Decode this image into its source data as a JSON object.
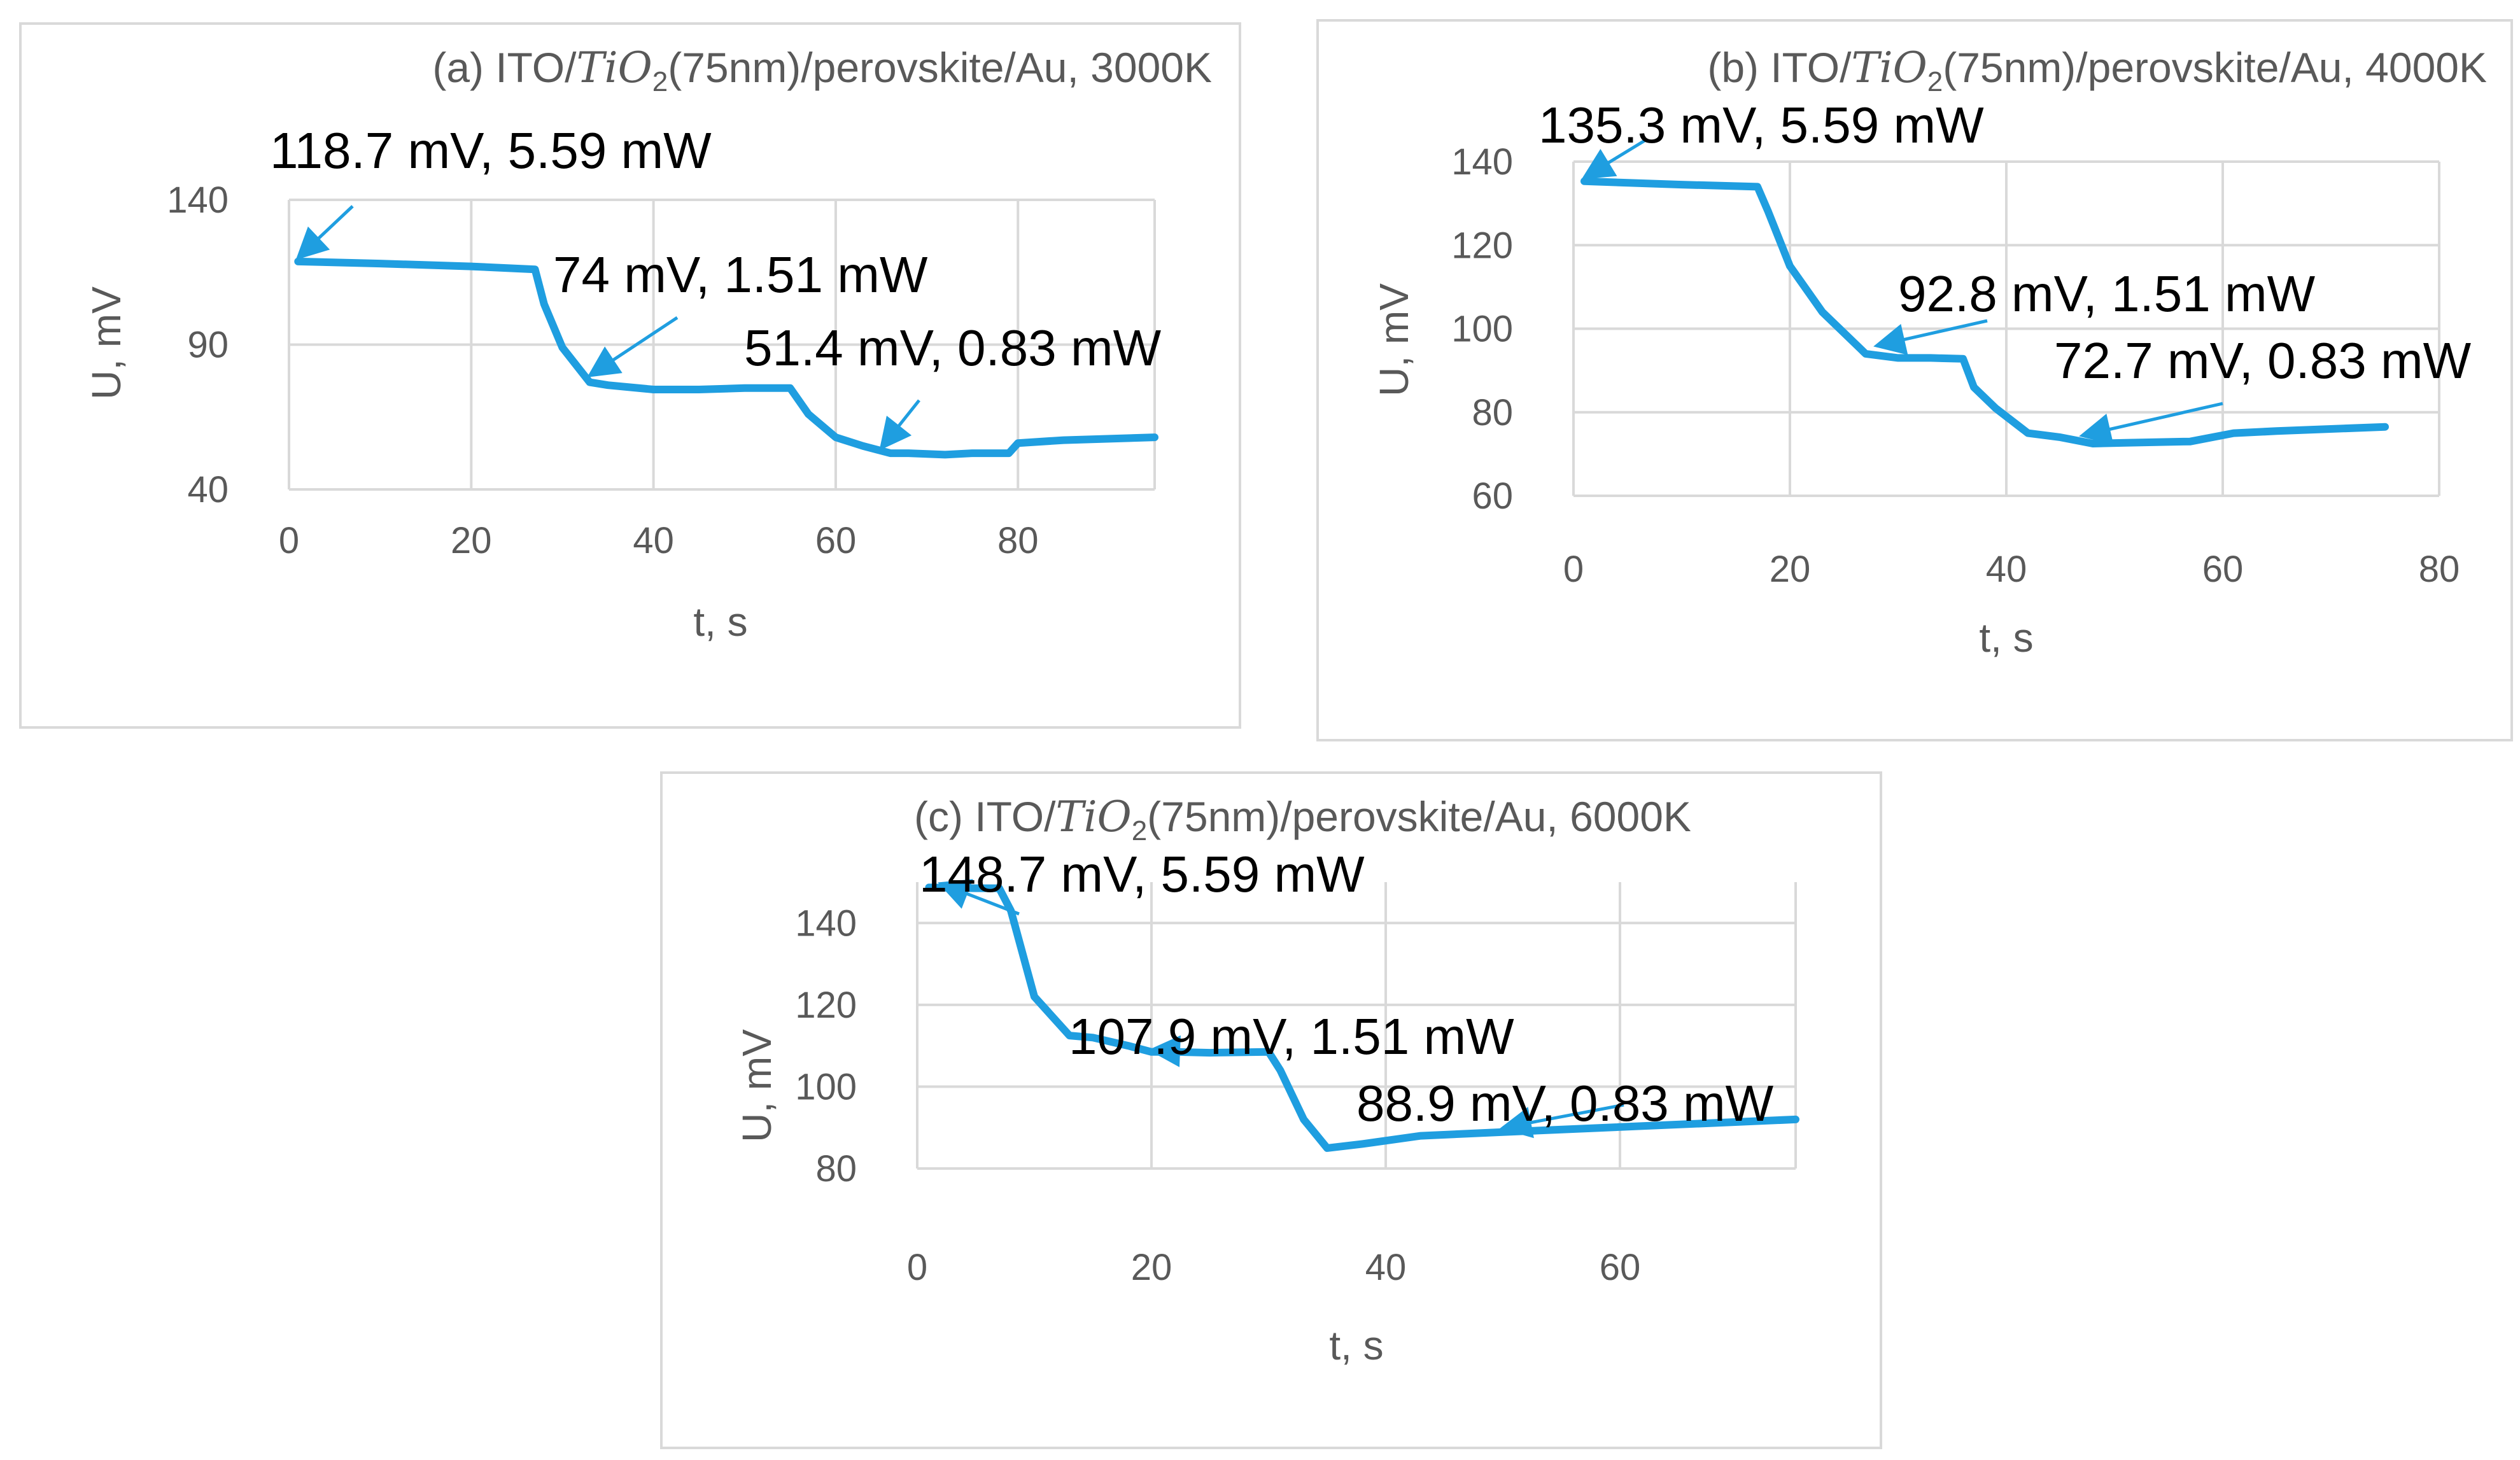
{
  "colors": {
    "series": "#1f9ee0",
    "grid": "#d9d9d9",
    "text": "#595959",
    "annotation": "#000000"
  },
  "chart_data": [
    {
      "id": "a",
      "type": "line",
      "title": {
        "prefix": "(a) ITO/",
        "math": "TiO",
        "sub": "2",
        "suffix": "(75nm)/perovskite/Au, 3000K"
      },
      "xlabel": "t, s",
      "ylabel": "U, mV",
      "xlim": [
        0,
        95
      ],
      "ylim": [
        40,
        140
      ],
      "xticks": [
        "0",
        "20",
        "40",
        "60",
        "80"
      ],
      "yticks": [
        "40",
        "90",
        "140"
      ],
      "series": [
        {
          "name": "U",
          "x": [
            1,
            10,
            20,
            27,
            28,
            30,
            33,
            35,
            40,
            45,
            50,
            55,
            57,
            60,
            63,
            66,
            68,
            72,
            75,
            79,
            80,
            85,
            95
          ],
          "y": [
            118.7,
            118,
            117,
            116,
            104,
            89,
            77,
            76,
            74.5,
            74.5,
            75,
            75,
            66,
            58,
            55,
            52.5,
            52.5,
            52,
            52.5,
            52.5,
            56,
            57,
            58
          ]
        }
      ],
      "annotations": [
        {
          "text": "118.7 mV, 5.59 mW",
          "x": 1,
          "y": 118.7
        },
        {
          "text": "74 mV, 1.51 mW",
          "x": 33,
          "y": 78
        },
        {
          "text": "51.4 mV, 0.83 mW",
          "x": 65,
          "y": 53
        }
      ]
    },
    {
      "id": "b",
      "type": "line",
      "title": {
        "prefix": "(b) ITO/",
        "math": "TiO",
        "sub": "2",
        "suffix": "(75nm)/perovskite/Au, 4000K"
      },
      "xlabel": "t, s",
      "ylabel": "U, mV",
      "xlim": [
        0,
        80
      ],
      "ylim": [
        60,
        140
      ],
      "xticks": [
        "0",
        "20",
        "40",
        "60",
        "80"
      ],
      "yticks": [
        "60",
        "80",
        "100",
        "120",
        "140"
      ],
      "series": [
        {
          "name": "U",
          "x": [
            1,
            10,
            17,
            18,
            20,
            23,
            27,
            30,
            33,
            36,
            37,
            39,
            42,
            45,
            48,
            51,
            57,
            61,
            65,
            75
          ],
          "y": [
            135.3,
            134.5,
            134,
            128,
            115,
            104,
            94,
            93,
            93,
            92.8,
            86,
            81,
            75,
            74,
            72.5,
            72.7,
            73,
            75,
            75.5,
            76.5
          ]
        }
      ],
      "annotations": [
        {
          "text": "135.3 mV, 5.59 mW",
          "x": 1,
          "y": 135.3
        },
        {
          "text": "92.8 mV, 1.51 mW",
          "x": 28,
          "y": 95
        },
        {
          "text": "72.7 mV, 0.83 mW",
          "x": 47,
          "y": 73.5
        }
      ]
    },
    {
      "id": "c",
      "type": "line",
      "title": {
        "prefix": "(c) ITO/",
        "math": "TiO",
        "sub": "2",
        "suffix": "(75nm)/perovskite/Au, 6000K"
      },
      "xlabel": "t, s",
      "ylabel": "U, mV",
      "xlim": [
        0,
        75
      ],
      "ylim": [
        80,
        150
      ],
      "xticks": [
        "0",
        "20",
        "40",
        "60"
      ],
      "yticks": [
        "80",
        "100",
        "120",
        "140"
      ],
      "series": [
        {
          "name": "U",
          "x": [
            1,
            5,
            7,
            8,
            10,
            13,
            15,
            18,
            20,
            22,
            25,
            30,
            31,
            33,
            35,
            38,
            43,
            50,
            75
          ],
          "y": [
            148.7,
            148.5,
            148.5,
            143,
            122,
            112.5,
            112,
            110,
            108.5,
            108.5,
            108.3,
            108.5,
            104,
            92,
            85,
            86,
            88,
            88.9,
            92
          ]
        }
      ],
      "annotations": [
        {
          "text": "148.7 mV, 5.59 mW",
          "x": 2,
          "y": 148.7
        },
        {
          "text": "107.9 mV, 1.51 mW",
          "x": 20,
          "y": 108
        },
        {
          "text": "88.9 mV, 0.83 mW",
          "x": 50,
          "y": 89
        }
      ]
    }
  ]
}
